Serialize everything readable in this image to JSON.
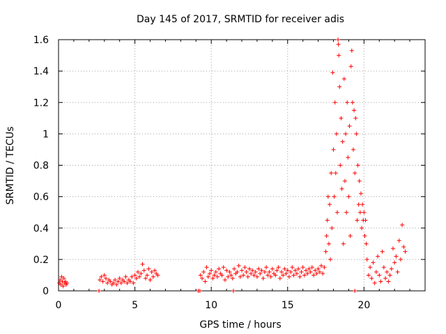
{
  "chart_data": {
    "type": "scatter",
    "title": "Day 145 of 2017, SRMTID for receiver adis",
    "xlabel": "GPS time / hours",
    "ylabel": "SRMTID / TECUs",
    "xlim": [
      0,
      24
    ],
    "ylim": [
      0,
      1.6
    ],
    "x_ticks": [
      0,
      5,
      10,
      15,
      20
    ],
    "x_tick_labels": [
      "0",
      "5",
      "10",
      "15",
      "20"
    ],
    "y_ticks": [
      0,
      0.2,
      0.4,
      0.6,
      0.8,
      1,
      1.2,
      1.4,
      1.6
    ],
    "y_tick_labels": [
      "0",
      "0.2",
      "0.4",
      "0.6",
      "0.8",
      "1",
      "1.2",
      "1.4",
      "1.6"
    ],
    "grid": true,
    "marker": "+",
    "color": "#ff0000",
    "series": [
      {
        "name": "SRMTID",
        "points": [
          [
            0.05,
            0.05
          ],
          [
            0.1,
            0.07
          ],
          [
            0.15,
            0.04
          ],
          [
            0.2,
            0.09
          ],
          [
            0.25,
            0.06
          ],
          [
            0.3,
            0.03
          ],
          [
            0.35,
            0.08
          ],
          [
            0.4,
            0.05
          ],
          [
            0.45,
            0.06
          ],
          [
            0.5,
            0.04
          ],
          [
            0.55,
            0.05
          ],
          [
            2.65,
            0.0
          ],
          [
            2.7,
            0.07
          ],
          [
            2.8,
            0.09
          ],
          [
            2.9,
            0.06
          ],
          [
            3.0,
            0.1
          ],
          [
            3.1,
            0.08
          ],
          [
            3.2,
            0.05
          ],
          [
            3.3,
            0.07
          ],
          [
            3.4,
            0.06
          ],
          [
            3.5,
            0.04
          ],
          [
            3.6,
            0.05
          ],
          [
            3.7,
            0.07
          ],
          [
            3.8,
            0.04
          ],
          [
            3.9,
            0.06
          ],
          [
            4.0,
            0.08
          ],
          [
            4.1,
            0.05
          ],
          [
            4.2,
            0.07
          ],
          [
            4.3,
            0.06
          ],
          [
            4.4,
            0.09
          ],
          [
            4.5,
            0.05
          ],
          [
            4.6,
            0.07
          ],
          [
            4.7,
            0.06
          ],
          [
            4.8,
            0.09
          ],
          [
            4.9,
            0.05
          ],
          [
            5.0,
            0.1
          ],
          [
            5.1,
            0.08
          ],
          [
            5.2,
            0.12
          ],
          [
            5.3,
            0.09
          ],
          [
            5.4,
            0.11
          ],
          [
            5.5,
            0.17
          ],
          [
            5.6,
            0.13
          ],
          [
            5.7,
            0.08
          ],
          [
            5.8,
            0.1
          ],
          [
            5.9,
            0.14
          ],
          [
            6.0,
            0.07
          ],
          [
            6.1,
            0.12
          ],
          [
            6.2,
            0.09
          ],
          [
            6.3,
            0.13
          ],
          [
            6.4,
            0.11
          ],
          [
            6.5,
            0.1
          ],
          [
            9.15,
            0.0
          ],
          [
            9.25,
            0.0
          ],
          [
            9.3,
            0.1
          ],
          [
            9.4,
            0.08
          ],
          [
            9.5,
            0.12
          ],
          [
            9.6,
            0.06
          ],
          [
            9.7,
            0.15
          ],
          [
            9.8,
            0.09
          ],
          [
            9.9,
            0.11
          ],
          [
            10.0,
            0.13
          ],
          [
            10.1,
            0.08
          ],
          [
            10.2,
            0.1
          ],
          [
            10.3,
            0.12
          ],
          [
            10.4,
            0.09
          ],
          [
            10.5,
            0.14
          ],
          [
            10.6,
            0.11
          ],
          [
            10.7,
            0.1
          ],
          [
            10.8,
            0.15
          ],
          [
            10.9,
            0.07
          ],
          [
            11.0,
            0.13
          ],
          [
            11.1,
            0.09
          ],
          [
            11.2,
            0.12
          ],
          [
            11.3,
            0.1
          ],
          [
            11.4,
            0.08
          ],
          [
            11.5,
            0.14
          ],
          [
            11.6,
            0.11
          ],
          [
            11.7,
            0.12
          ],
          [
            11.8,
            0.16
          ],
          [
            11.9,
            0.09
          ],
          [
            12.0,
            0.13
          ],
          [
            12.1,
            0.1
          ],
          [
            12.2,
            0.15
          ],
          [
            12.3,
            0.12
          ],
          [
            12.4,
            0.09
          ],
          [
            12.5,
            0.14
          ],
          [
            12.6,
            0.11
          ],
          [
            12.7,
            0.13
          ],
          [
            12.8,
            0.1
          ],
          [
            12.9,
            0.12
          ],
          [
            13.0,
            0.09
          ],
          [
            13.1,
            0.14
          ],
          [
            13.2,
            0.11
          ],
          [
            13.3,
            0.13
          ],
          [
            13.4,
            0.08
          ],
          [
            13.5,
            0.12
          ],
          [
            13.6,
            0.15
          ],
          [
            13.7,
            0.1
          ],
          [
            13.8,
            0.12
          ],
          [
            13.9,
            0.09
          ],
          [
            14.0,
            0.14
          ],
          [
            14.1,
            0.11
          ],
          [
            14.2,
            0.1
          ],
          [
            14.3,
            0.13
          ],
          [
            14.4,
            0.15
          ],
          [
            14.5,
            0.08
          ],
          [
            14.6,
            0.12
          ],
          [
            14.7,
            0.1
          ],
          [
            14.8,
            0.14
          ],
          [
            14.9,
            0.11
          ],
          [
            15.0,
            0.13
          ],
          [
            15.1,
            0.09
          ],
          [
            15.2,
            0.12
          ],
          [
            15.3,
            0.15
          ],
          [
            15.4,
            0.1
          ],
          [
            15.5,
            0.13
          ],
          [
            15.6,
            0.11
          ],
          [
            15.7,
            0.14
          ],
          [
            15.8,
            0.09
          ],
          [
            15.9,
            0.12
          ],
          [
            16.0,
            0.15
          ],
          [
            16.1,
            0.1
          ],
          [
            16.2,
            0.13
          ],
          [
            16.3,
            0.11
          ],
          [
            16.4,
            0.14
          ],
          [
            16.5,
            0.12
          ],
          [
            16.6,
            0.15
          ],
          [
            16.7,
            0.1
          ],
          [
            16.8,
            0.13
          ],
          [
            16.9,
            0.11
          ],
          [
            17.0,
            0.14
          ],
          [
            17.1,
            0.12
          ],
          [
            17.2,
            0.16
          ],
          [
            17.3,
            0.11
          ],
          [
            11.45,
            0.0
          ],
          [
            17.4,
            0.15
          ],
          [
            17.5,
            0.25
          ],
          [
            17.55,
            0.35
          ],
          [
            17.6,
            0.45
          ],
          [
            17.65,
            0.6
          ],
          [
            17.7,
            0.3
          ],
          [
            17.75,
            0.55
          ],
          [
            17.8,
            0.2
          ],
          [
            17.85,
            0.75
          ],
          [
            17.9,
            0.4
          ],
          [
            17.95,
            1.39
          ],
          [
            18.0,
            0.9
          ],
          [
            18.05,
            0.6
          ],
          [
            18.1,
            1.2
          ],
          [
            18.15,
            0.75
          ],
          [
            18.2,
            1.0
          ],
          [
            18.25,
            0.5
          ],
          [
            18.3,
            1.6
          ],
          [
            18.32,
            1.57
          ],
          [
            18.35,
            1.5
          ],
          [
            18.4,
            1.3
          ],
          [
            18.45,
            0.8
          ],
          [
            18.5,
            1.1
          ],
          [
            18.55,
            0.65
          ],
          [
            18.6,
            0.95
          ],
          [
            18.65,
            0.3
          ],
          [
            18.7,
            1.35
          ],
          [
            18.75,
            0.7
          ],
          [
            18.8,
            1.0
          ],
          [
            18.85,
            0.5
          ],
          [
            18.9,
            1.2
          ],
          [
            18.95,
            0.85
          ],
          [
            19.0,
            0.6
          ],
          [
            19.05,
            1.05
          ],
          [
            19.1,
            0.35
          ],
          [
            19.15,
            1.43
          ],
          [
            19.2,
            1.53
          ],
          [
            19.25,
            1.2
          ],
          [
            19.3,
            0.9
          ],
          [
            19.35,
            1.15
          ],
          [
            19.4,
            0.75
          ],
          [
            19.45,
            1.1
          ],
          [
            19.5,
            1.0
          ],
          [
            19.55,
            0.45
          ],
          [
            19.6,
            0.8
          ],
          [
            19.65,
            0.55
          ],
          [
            19.7,
            0.7
          ],
          [
            19.75,
            0.5
          ],
          [
            19.8,
            0.62
          ],
          [
            19.85,
            0.4
          ],
          [
            19.9,
            0.55
          ],
          [
            19.95,
            0.45
          ],
          [
            20.0,
            0.5
          ],
          [
            20.05,
            0.35
          ],
          [
            20.1,
            0.45
          ],
          [
            20.15,
            0.3
          ],
          [
            19.4,
            0.0
          ],
          [
            20.2,
            0.2
          ],
          [
            20.3,
            0.1
          ],
          [
            20.4,
            0.15
          ],
          [
            20.5,
            0.08
          ],
          [
            20.6,
            0.18
          ],
          [
            20.7,
            0.05
          ],
          [
            20.8,
            0.12
          ],
          [
            20.9,
            0.22
          ],
          [
            21.0,
            0.1
          ],
          [
            21.1,
            0.06
          ],
          [
            21.2,
            0.25
          ],
          [
            21.3,
            0.15
          ],
          [
            21.4,
            0.08
          ],
          [
            21.5,
            0.12
          ],
          [
            21.6,
            0.06
          ],
          [
            21.7,
            0.1
          ],
          [
            21.8,
            0.14
          ],
          [
            21.9,
            0.27
          ],
          [
            22.0,
            0.18
          ],
          [
            22.1,
            0.22
          ],
          [
            22.2,
            0.12
          ],
          [
            22.3,
            0.32
          ],
          [
            22.4,
            0.2
          ],
          [
            22.5,
            0.42
          ],
          [
            22.6,
            0.28
          ],
          [
            22.7,
            0.25
          ]
        ]
      }
    ]
  }
}
